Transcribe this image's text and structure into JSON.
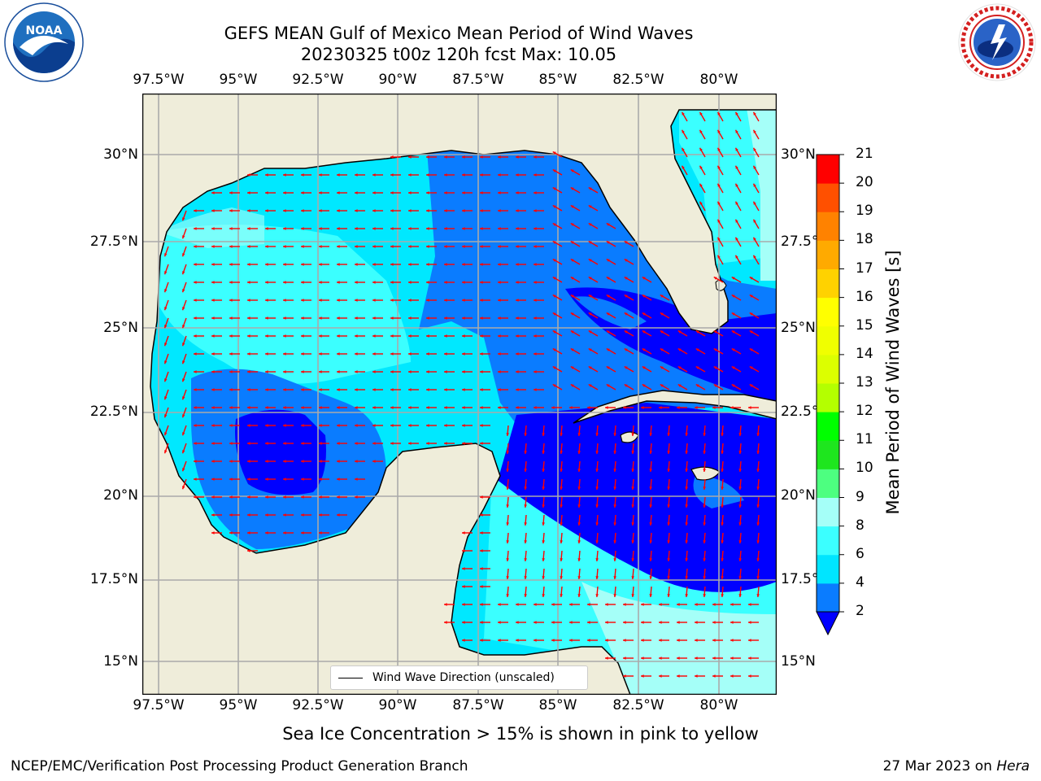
{
  "title_line1": "GEFS MEAN Gulf of Mexico Mean Period of Wind Waves",
  "title_line2": "20230325 t00z 120h fcst   Max: 10.05",
  "logos": {
    "left": "NOAA",
    "right": "NATIONAL WEATHER SERVICE"
  },
  "lon_labels": [
    "97.5°W",
    "95°W",
    "92.5°W",
    "90°W",
    "87.5°W",
    "85°W",
    "82.5°W",
    "80°W"
  ],
  "lat_labels": [
    "30°N",
    "27.5°N",
    "25°N",
    "22.5°N",
    "20°N",
    "17.5°N",
    "15°N"
  ],
  "colorbar": {
    "title": "Mean Period of Wind Waves [s]",
    "ticks": [
      "2",
      "4",
      "6",
      "8",
      "9",
      "10",
      "11",
      "12",
      "13",
      "14",
      "15",
      "16",
      "17",
      "18",
      "19",
      "20",
      "21"
    ],
    "colors": [
      "#0000ff",
      "#0a7cff",
      "#00e5ff",
      "#3bffff",
      "#a5fff8",
      "#4dff80",
      "#1ee61e",
      "#00ff00",
      "#b4ff00",
      "#dcff00",
      "#f0ff00",
      "#ffff00",
      "#ffd200",
      "#ffaa00",
      "#ff8200",
      "#ff5000",
      "#ff0000"
    ]
  },
  "legend_label": "Wind Wave Direction (unscaled)",
  "caption": "Sea Ice Concentration > 15% is shown in pink to yellow",
  "footer_left": "NCEP/EMC/Verification Post Processing Product Generation Branch",
  "footer_date": "27 Mar 2023 on ",
  "footer_host": "Hera",
  "map_colors": {
    "land": "#efedda",
    "coast": "#000000",
    "grid": "#aaaaaa",
    "arrow": "#ff0000"
  }
}
